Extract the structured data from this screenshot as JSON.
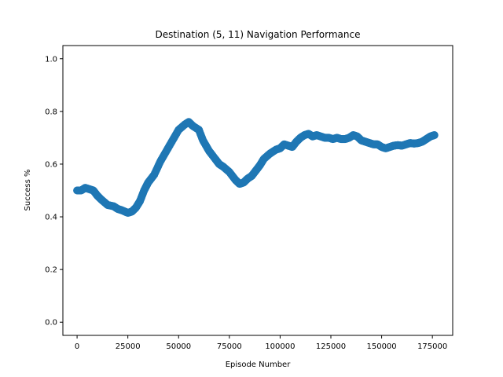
{
  "chart_data": {
    "type": "scatter",
    "title": "Destination (5, 11) Navigation Performance",
    "xlabel": "Episode Number",
    "ylabel": "Success %",
    "xlim": [
      -7000,
      185000
    ],
    "ylim": [
      -0.05,
      1.05
    ],
    "xticks": [
      0,
      25000,
      50000,
      75000,
      100000,
      125000,
      150000,
      175000
    ],
    "xtick_labels": [
      "0",
      "25000",
      "50000",
      "75000",
      "100000",
      "125000",
      "150000",
      "175000"
    ],
    "yticks": [
      0.0,
      0.2,
      0.4,
      0.6,
      0.8,
      1.0
    ],
    "ytick_labels": [
      "0.0",
      "0.2",
      "0.4",
      "0.6",
      "0.8",
      "1.0"
    ],
    "grid": false,
    "series": [
      {
        "color": "#1f77b4",
        "marker": "circle",
        "x": [
          0,
          2000,
          4000,
          6000,
          8000,
          10000,
          12000,
          15000,
          18000,
          20000,
          22000,
          25000,
          27000,
          29000,
          31000,
          33000,
          35000,
          38000,
          41000,
          44000,
          47000,
          50000,
          53000,
          55000,
          57000,
          60000,
          62000,
          65000,
          68000,
          70000,
          72000,
          75000,
          78000,
          80000,
          82000,
          84000,
          86000,
          88000,
          90000,
          92000,
          95000,
          98000,
          100000,
          102000,
          104000,
          106000,
          108000,
          110000,
          112000,
          114000,
          116000,
          118000,
          120000,
          122000,
          124000,
          126000,
          128000,
          130000,
          132000,
          134000,
          136000,
          138000,
          140000,
          142000,
          144000,
          146000,
          148000,
          150000,
          152000,
          154000,
          156000,
          158000,
          160000,
          162000,
          164000,
          166000,
          168000,
          170000,
          172000,
          174000,
          176000
        ],
        "y": [
          0.5,
          0.5,
          0.51,
          0.505,
          0.5,
          0.48,
          0.465,
          0.445,
          0.44,
          0.43,
          0.425,
          0.415,
          0.42,
          0.435,
          0.46,
          0.5,
          0.53,
          0.56,
          0.61,
          0.65,
          0.69,
          0.73,
          0.75,
          0.76,
          0.745,
          0.73,
          0.69,
          0.65,
          0.62,
          0.6,
          0.59,
          0.57,
          0.54,
          0.525,
          0.53,
          0.545,
          0.555,
          0.575,
          0.595,
          0.62,
          0.64,
          0.655,
          0.66,
          0.675,
          0.67,
          0.665,
          0.685,
          0.7,
          0.71,
          0.715,
          0.705,
          0.71,
          0.705,
          0.7,
          0.7,
          0.695,
          0.7,
          0.695,
          0.695,
          0.7,
          0.71,
          0.705,
          0.69,
          0.685,
          0.68,
          0.675,
          0.675,
          0.665,
          0.66,
          0.665,
          0.67,
          0.672,
          0.67,
          0.675,
          0.68,
          0.678,
          0.68,
          0.685,
          0.695,
          0.705,
          0.71
        ]
      }
    ]
  }
}
